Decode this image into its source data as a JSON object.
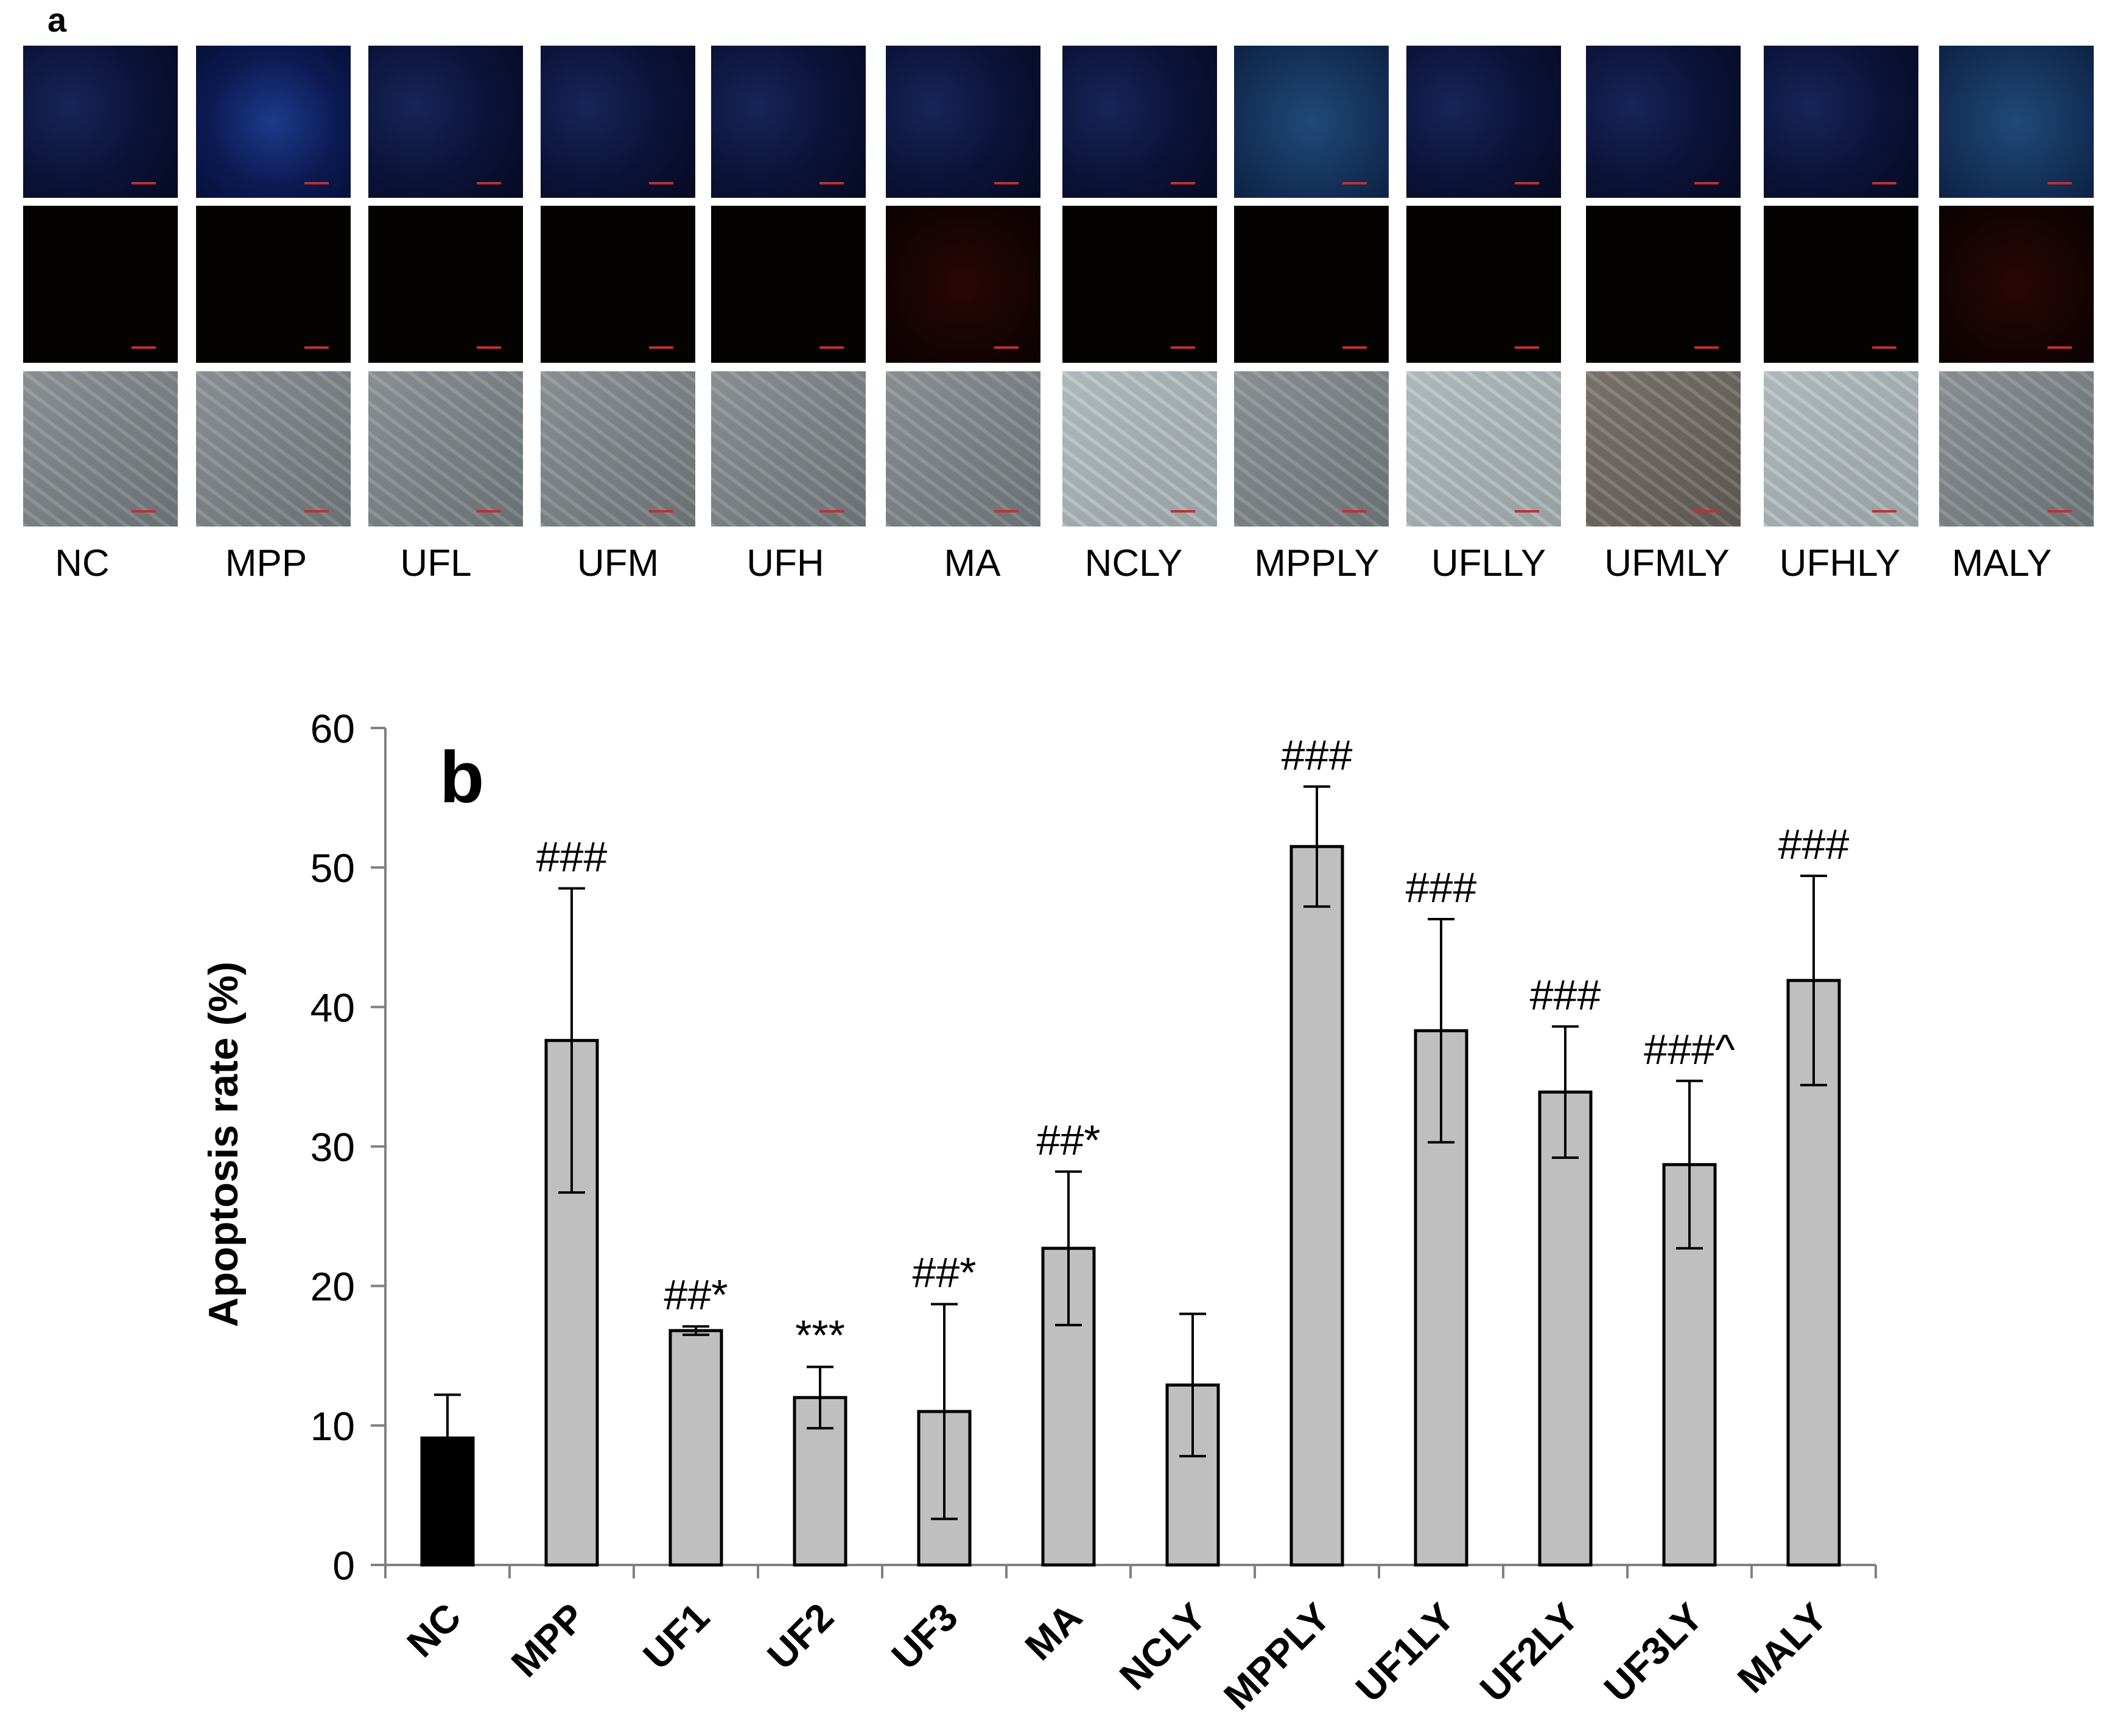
{
  "panel_a": {
    "letter": "a",
    "columns": [
      "NC",
      "MPP",
      "UFL",
      "UFM",
      "UFH",
      "MA",
      "NCLY",
      "MPPLY",
      "UFLLY",
      "UFMLY",
      "UFHLY",
      "MALY"
    ],
    "rows": [
      "blue-fluorescence",
      "red-fluorescence",
      "phase-contrast"
    ],
    "colors": {
      "blue_channel": "#0a1236",
      "red_channel": "#050202",
      "phase_contrast": "#7f8689"
    }
  },
  "chart_data": {
    "type": "bar",
    "panel_letter": "b",
    "title": "",
    "xlabel": "",
    "ylabel": "Apoptosis rate (%)",
    "ylim": [
      0,
      60
    ],
    "yticks": [
      0,
      10,
      20,
      30,
      40,
      50,
      60
    ],
    "grid": false,
    "legend": "none",
    "categories": [
      "NC",
      "MPP",
      "UF1",
      "UF2",
      "UF3",
      "MA",
      "NCLY",
      "MPPLY",
      "UF1LY",
      "UF2LY",
      "UF3LY",
      "MALY"
    ],
    "values": [
      9.1,
      37.6,
      16.8,
      12.0,
      11.0,
      22.7,
      12.9,
      51.5,
      38.3,
      33.9,
      28.7,
      41.9
    ],
    "errors": [
      3.1,
      10.9,
      0.3,
      2.2,
      7.7,
      5.5,
      5.1,
      4.3,
      8.0,
      4.7,
      6.0,
      7.5
    ],
    "annotations": [
      "",
      "###",
      "##*",
      "***",
      "##*",
      "##*",
      "",
      "###",
      "###",
      "###",
      "###^",
      "###"
    ],
    "bar_colors": [
      "#000000",
      "#bfbfbf",
      "#bfbfbf",
      "#bfbfbf",
      "#bfbfbf",
      "#bfbfbf",
      "#bfbfbf",
      "#bfbfbf",
      "#bfbfbf",
      "#bfbfbf",
      "#bfbfbf",
      "#bfbfbf"
    ]
  }
}
